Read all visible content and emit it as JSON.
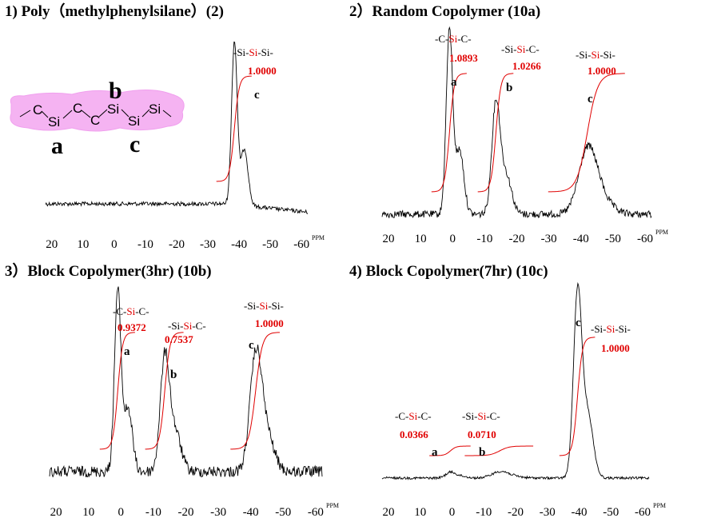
{
  "molecule": {
    "atoms": [
      "C",
      "Si",
      "C",
      "C",
      "Si",
      "Si",
      "Si"
    ],
    "labels": [
      "a",
      "b",
      "c"
    ]
  },
  "chart_data": [
    {
      "type": "line",
      "title": "1) Poly（methylphenylsilane）(2)",
      "xlabel": "PPM",
      "xticks": [
        20,
        10,
        0,
        -10,
        -20,
        -30,
        -40,
        -50,
        -60
      ],
      "xlim": [
        22,
        -62
      ],
      "xreversed": true,
      "grid": false,
      "peaks": [
        {
          "name": "c",
          "center": -38.5,
          "width": 0.9,
          "height": 1.0,
          "fragment": [
            "-Si-",
            "Si",
            "-Si-"
          ],
          "integral": "1.0000"
        }
      ]
    },
    {
      "type": "line",
      "title": "2）Random Copolymer (10a)",
      "xlabel": "PPM",
      "xticks": [
        20,
        10,
        0,
        -10,
        -20,
        -30,
        -40,
        -50,
        -60
      ],
      "xlim": [
        22,
        -62
      ],
      "xreversed": true,
      "grid": false,
      "peaks": [
        {
          "name": "a",
          "center": 1.0,
          "width": 1.0,
          "height": 1.0,
          "fragment": [
            "-C-",
            "Si",
            "-C-"
          ],
          "integral": "1.0893"
        },
        {
          "name": "b",
          "center": -13.5,
          "width": 1.3,
          "height": 0.6,
          "fragment": [
            "-Si-",
            "Si",
            "-C-"
          ],
          "integral": "1.0266"
        },
        {
          "name": "c",
          "center": -42.0,
          "width": 2.8,
          "height": 0.3,
          "fragment": [
            "-Si-",
            "Si",
            "-Si-"
          ],
          "integral": "1.0000"
        }
      ]
    },
    {
      "type": "line",
      "title": "3）Block Copolymer(3hr) (10b)",
      "xlabel": "PPM",
      "xticks": [
        20,
        10,
        0,
        -10,
        -20,
        -30,
        -40,
        -50,
        -60
      ],
      "xlim": [
        22,
        -62
      ],
      "xreversed": true,
      "grid": false,
      "peaks": [
        {
          "name": "a",
          "center": 1.0,
          "width": 1.0,
          "height": 1.0,
          "fragment": [
            "-C-",
            "Si",
            "-C-"
          ],
          "integral": "0.9372"
        },
        {
          "name": "b",
          "center": -13.5,
          "width": 1.4,
          "height": 0.62,
          "fragment": [
            "-Si-",
            "Si",
            "-C-"
          ],
          "integral": "0.7537"
        },
        {
          "name": "c",
          "center": -41.5,
          "width": 1.8,
          "height": 0.6,
          "fragment": [
            "-Si-",
            "Si",
            "-Si-"
          ],
          "integral": "1.0000"
        }
      ]
    },
    {
      "type": "line",
      "title": "4) Block Copolymer(7hr) (10c)",
      "xlabel": "PPM",
      "xticks": [
        20,
        10,
        0,
        -10,
        -20,
        -30,
        -40,
        -50,
        -60
      ],
      "xlim": [
        22,
        -62
      ],
      "xreversed": true,
      "grid": false,
      "peaks": [
        {
          "name": "a",
          "center": 0.5,
          "width": 1.5,
          "height": 0.03,
          "fragment": [
            "-C-",
            "Si",
            "-C-"
          ],
          "integral": "0.0366"
        },
        {
          "name": "b",
          "center": -15.0,
          "width": 2.5,
          "height": 0.03,
          "fragment": [
            "-Si-",
            "Si",
            "-C-"
          ],
          "integral": "0.0710"
        },
        {
          "name": "c",
          "center": -39.5,
          "width": 1.3,
          "height": 1.0,
          "fragment": [
            "-Si-",
            "Si",
            "-Si-"
          ],
          "integral": "1.0000"
        }
      ]
    }
  ]
}
